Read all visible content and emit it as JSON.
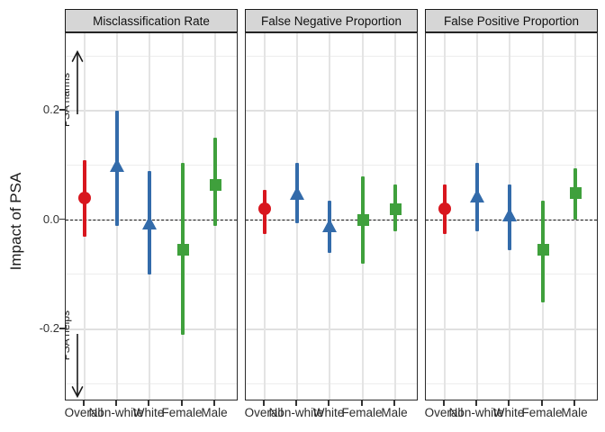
{
  "chart_data": {
    "type": "scatter",
    "subtype": "faceted-pointrange-forest",
    "ylabel": "Impact of PSA",
    "ylim": [
      -0.34,
      0.34
    ],
    "yticks": [
      0.2,
      0.0,
      -0.2
    ],
    "ytick_labels": [
      "0.2",
      "0.0",
      "-0.2"
    ],
    "gridlines_y": [
      0.3,
      0.2,
      0.1,
      0.0,
      -0.1,
      -0.2,
      -0.3
    ],
    "reference_line": 0.0,
    "grid": "on",
    "legend_position": "none",
    "categories": [
      "Overall",
      "Non-white",
      "White",
      "Female",
      "Male"
    ],
    "annotations": [
      {
        "text": "PSA harms",
        "direction": "up"
      },
      {
        "text": "PSA helps",
        "direction": "down"
      }
    ],
    "colors": {
      "overall": "#d8161e",
      "race": "#336baa",
      "sex": "#3fa03c"
    },
    "panels": [
      {
        "facet": "Misclassification Rate",
        "points": [
          {
            "group": "Overall",
            "shape": "circle",
            "color": "#d8161e",
            "estimate": 0.04,
            "lower": -0.03,
            "upper": 0.11
          },
          {
            "group": "Non-white",
            "shape": "triangle",
            "color": "#336baa",
            "estimate": 0.1,
            "lower": -0.01,
            "upper": 0.2
          },
          {
            "group": "White",
            "shape": "triangle",
            "color": "#336baa",
            "estimate": -0.005,
            "lower": -0.1,
            "upper": 0.09
          },
          {
            "group": "Female",
            "shape": "square",
            "color": "#3fa03c",
            "estimate": -0.055,
            "lower": -0.21,
            "upper": 0.105
          },
          {
            "group": "Male",
            "shape": "square",
            "color": "#3fa03c",
            "estimate": 0.065,
            "lower": -0.01,
            "upper": 0.15
          }
        ]
      },
      {
        "facet": "False Negative Proportion",
        "points": [
          {
            "group": "Overall",
            "shape": "circle",
            "color": "#d8161e",
            "estimate": 0.02,
            "lower": -0.025,
            "upper": 0.055
          },
          {
            "group": "Non-white",
            "shape": "triangle",
            "color": "#336baa",
            "estimate": 0.05,
            "lower": -0.005,
            "upper": 0.105
          },
          {
            "group": "White",
            "shape": "triangle",
            "color": "#336baa",
            "estimate": -0.01,
            "lower": -0.06,
            "upper": 0.035
          },
          {
            "group": "Female",
            "shape": "square",
            "color": "#3fa03c",
            "estimate": 0.0,
            "lower": -0.08,
            "upper": 0.08
          },
          {
            "group": "Male",
            "shape": "square",
            "color": "#3fa03c",
            "estimate": 0.02,
            "lower": -0.02,
            "upper": 0.065
          }
        ]
      },
      {
        "facet": "False Positive Proportion",
        "points": [
          {
            "group": "Overall",
            "shape": "circle",
            "color": "#d8161e",
            "estimate": 0.02,
            "lower": -0.025,
            "upper": 0.065
          },
          {
            "group": "Non-white",
            "shape": "triangle",
            "color": "#336baa",
            "estimate": 0.045,
            "lower": -0.02,
            "upper": 0.105
          },
          {
            "group": "White",
            "shape": "triangle",
            "color": "#336baa",
            "estimate": 0.01,
            "lower": -0.055,
            "upper": 0.065
          },
          {
            "group": "Female",
            "shape": "square",
            "color": "#3fa03c",
            "estimate": -0.055,
            "lower": -0.15,
            "upper": 0.035
          },
          {
            "group": "Male",
            "shape": "square",
            "color": "#3fa03c",
            "estimate": 0.05,
            "lower": 0.0,
            "upper": 0.095
          }
        ]
      }
    ]
  }
}
